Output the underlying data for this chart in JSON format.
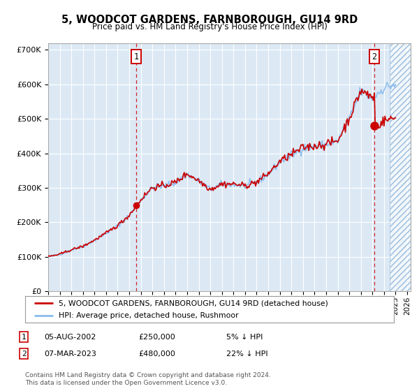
{
  "title": "5, WOODCOT GARDENS, FARNBOROUGH, GU14 9RD",
  "subtitle": "Price paid vs. HM Land Registry's House Price Index (HPI)",
  "ylim": [
    0,
    720000
  ],
  "yticks": [
    0,
    100000,
    200000,
    300000,
    400000,
    500000,
    600000,
    700000
  ],
  "ytick_labels": [
    "£0",
    "£100K",
    "£200K",
    "£300K",
    "£400K",
    "£500K",
    "£600K",
    "£700K"
  ],
  "hpi_color": "#88bbee",
  "price_color": "#cc0000",
  "bg_color": "#dce9f5",
  "transaction1": {
    "year": 2002.6,
    "price": 250000
  },
  "transaction2": {
    "year": 2023.17,
    "price": 480000
  },
  "legend_line1": "5, WOODCOT GARDENS, FARNBOROUGH, GU14 9RD (detached house)",
  "legend_line2": "HPI: Average price, detached house, Rushmoor",
  "annotation1_date": "05-AUG-2002",
  "annotation1_price": "£250,000",
  "annotation1_hpi": "5% ↓ HPI",
  "annotation2_date": "07-MAR-2023",
  "annotation2_price": "£480,000",
  "annotation2_hpi": "22% ↓ HPI",
  "footer": "Contains HM Land Registry data © Crown copyright and database right 2024.\nThis data is licensed under the Open Government Licence v3.0.",
  "xmin": 1995,
  "xmax": 2026,
  "hatched_xmin": 2024.5,
  "hatched_xmax": 2026.3
}
